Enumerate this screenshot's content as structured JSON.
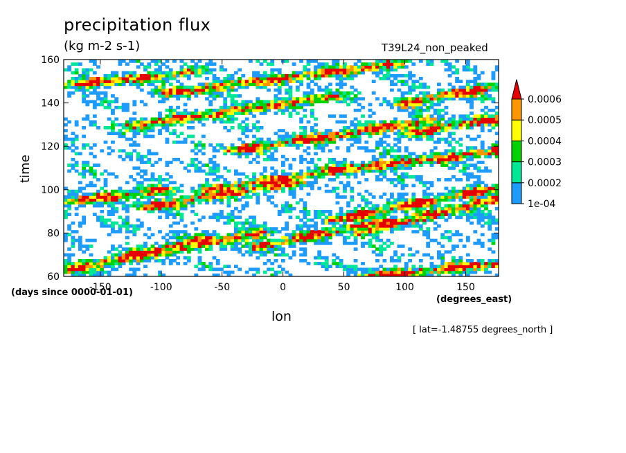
{
  "chart_data": {
    "type": "heatmap",
    "title": "precipitation flux",
    "units": "(kg m-2 s-1)",
    "experiment": "T39L24_non_peaked",
    "xlabel": "lon",
    "ylabel": "time",
    "x_units": "(degrees_east)",
    "y_units": "(days since 0000-01-01)",
    "annotation": "[ lat=-1.48755 degrees_north ]",
    "xlim": [
      -180,
      177
    ],
    "ylim": [
      60,
      160
    ],
    "x_ticks": [
      -150,
      -100,
      -50,
      0,
      50,
      100,
      150
    ],
    "x_tick_labels": [
      "-150",
      "-100",
      "-50",
      "0",
      "50",
      "100",
      "150"
    ],
    "y_ticks": [
      60,
      80,
      100,
      120,
      140,
      160
    ],
    "y_tick_labels": [
      "60",
      "80",
      "100",
      "120",
      "140",
      "160"
    ],
    "colorbar": {
      "levels": [
        0.0001,
        0.0002,
        0.0003,
        0.0004,
        0.0005,
        0.0006
      ],
      "level_labels": [
        "1e-04",
        "0.0002",
        "0.0003",
        "0.0004",
        "0.0005",
        "0.0006"
      ],
      "colors": [
        "#1e9bff",
        "#00e697",
        "#00d200",
        "#ffff00",
        "#ff9600",
        "#e60000"
      ]
    },
    "features": [
      {
        "lon0": -175,
        "t0": 63,
        "lon1": -60,
        "t1": 78
      },
      {
        "lon0": -150,
        "t0": 66,
        "lon1": -20,
        "t1": 80
      },
      {
        "lon0": -110,
        "t0": 92,
        "lon1": 10,
        "t1": 104
      },
      {
        "lon0": -60,
        "t0": 100,
        "lon1": 80,
        "t1": 112
      },
      {
        "lon0": 20,
        "t0": 107,
        "lon1": 177,
        "t1": 118
      },
      {
        "lon0": -40,
        "t0": 118,
        "lon1": 120,
        "t1": 132
      },
      {
        "lon0": -120,
        "t0": 130,
        "lon1": 40,
        "t1": 143
      },
      {
        "lon0": -90,
        "t0": 145,
        "lon1": 90,
        "t1": 158
      },
      {
        "lon0": 60,
        "t0": 80,
        "lon1": 177,
        "t1": 96
      },
      {
        "lon0": 40,
        "t0": 86,
        "lon1": 177,
        "t1": 101
      },
      {
        "lon0": 70,
        "t0": 60,
        "lon1": 177,
        "t1": 66
      },
      {
        "lon0": -180,
        "t0": 94,
        "lon1": -100,
        "t1": 100
      },
      {
        "lon0": 100,
        "t0": 126,
        "lon1": 177,
        "t1": 133
      },
      {
        "lon0": -180,
        "t0": 148,
        "lon1": -80,
        "t1": 154
      },
      {
        "lon0": -20,
        "t0": 74,
        "lon1": 90,
        "t1": 86
      },
      {
        "lon0": 100,
        "t0": 140,
        "lon1": 177,
        "t1": 148
      }
    ]
  }
}
